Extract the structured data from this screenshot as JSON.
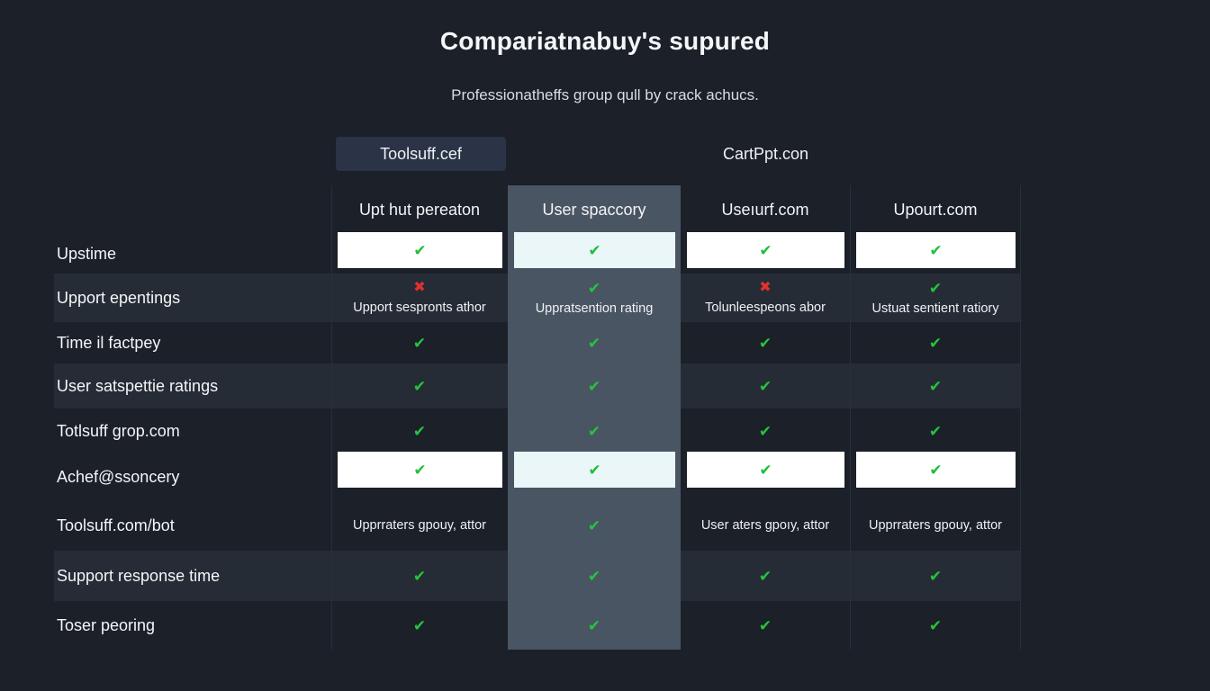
{
  "header": {
    "title": "Compariatnabuy's supured",
    "subtitle": "Professionatheffs group qull by crack achucs."
  },
  "top_tabs": [
    {
      "label": "Toolsuff.cef",
      "active": true
    },
    {
      "label": "CartPpt.con",
      "active": false
    }
  ],
  "columns": [
    {
      "label": "Upt hut pereaton"
    },
    {
      "label": "User spaccory",
      "highlighted": true
    },
    {
      "label": "Useıurf.com"
    },
    {
      "label": "Upourt.com"
    }
  ],
  "rows": [
    {
      "label": "Upstime",
      "style": "white",
      "cells": [
        {
          "icon": "check"
        },
        {
          "icon": "check"
        },
        {
          "icon": "check"
        },
        {
          "icon": "check"
        }
      ]
    },
    {
      "label": "Upport epentings",
      "style": "band",
      "cells": [
        {
          "icon": "cross",
          "note": "Upport sespronts athor"
        },
        {
          "icon": "check",
          "note": "Uppratsention rating"
        },
        {
          "icon": "cross",
          "note": "Tolunleespeons abor"
        },
        {
          "icon": "check",
          "note": "Ustuat sentient ratiory"
        }
      ]
    },
    {
      "label": "Time il factpey",
      "style": "plain",
      "cells": [
        {
          "icon": "check"
        },
        {
          "icon": "check"
        },
        {
          "icon": "check"
        },
        {
          "icon": "check"
        }
      ]
    },
    {
      "label": "User satspettie ratings",
      "style": "band",
      "cells": [
        {
          "icon": "check"
        },
        {
          "icon": "check"
        },
        {
          "icon": "check"
        },
        {
          "icon": "check"
        }
      ]
    },
    {
      "label": "Totlsuff grop.com",
      "style": "plain",
      "cells": [
        {
          "icon": "check"
        },
        {
          "icon": "check"
        },
        {
          "icon": "check"
        },
        {
          "icon": "check"
        }
      ]
    },
    {
      "label": "Achef@ssoncery",
      "style": "white",
      "cells": [
        {
          "icon": "check"
        },
        {
          "icon": "check"
        },
        {
          "icon": "check"
        },
        {
          "icon": "check"
        }
      ]
    },
    {
      "label": "Toolsuff.com/bot",
      "style": "plain",
      "cells": [
        {
          "note": "Upprraters gpouy, attor"
        },
        {
          "icon": "check"
        },
        {
          "note": "User aters gpoıy, attor"
        },
        {
          "note": "Upprraters gpouy, attor"
        }
      ]
    },
    {
      "label": "Support response time",
      "style": "band",
      "cells": [
        {
          "icon": "check"
        },
        {
          "icon": "check"
        },
        {
          "icon": "check"
        },
        {
          "icon": "check"
        }
      ]
    },
    {
      "label": "Toser peoring",
      "style": "plain",
      "cells": [
        {
          "icon": "check"
        },
        {
          "icon": "check"
        },
        {
          "icon": "check"
        },
        {
          "icon": "check"
        }
      ]
    }
  ],
  "icons": {
    "check": "✔",
    "cross": "✖"
  },
  "colors": {
    "background": "#1b2029",
    "highlight_column": "#4a5563",
    "check": "#25c43c",
    "cross": "#e3312e"
  }
}
